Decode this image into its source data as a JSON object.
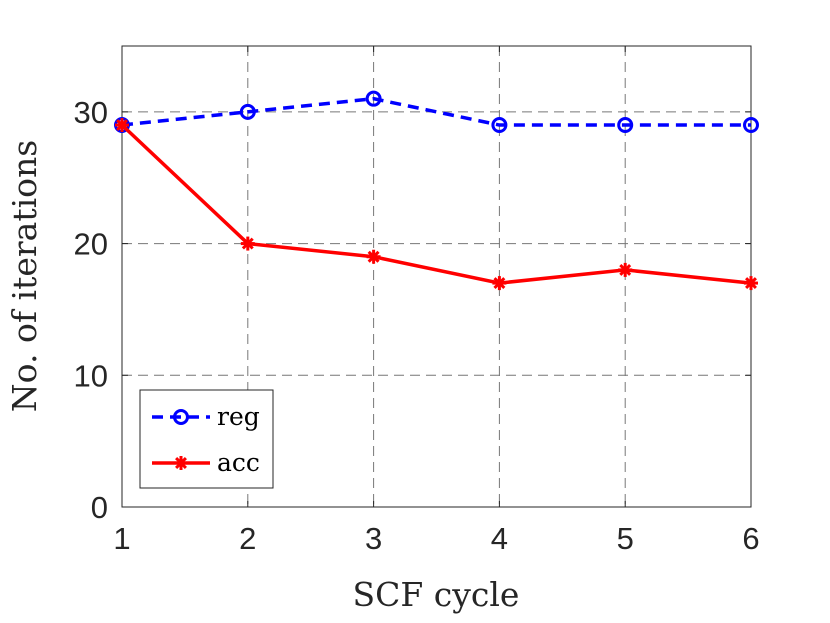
{
  "chart_data": {
    "type": "line",
    "title": "",
    "xlabel": "SCF cycle",
    "ylabel": "No. of iterations",
    "x": [
      1,
      2,
      3,
      4,
      5,
      6
    ],
    "xlim": [
      1,
      6
    ],
    "ylim": [
      0,
      35
    ],
    "xticks": [
      "1",
      "2",
      "3",
      "4",
      "5",
      "6"
    ],
    "yticks": [
      "0",
      "10",
      "20",
      "30"
    ],
    "grid": true,
    "legend_position": "bottom-left",
    "series": [
      {
        "name": "reg",
        "values": [
          29,
          30,
          31,
          29,
          29,
          29
        ],
        "color": "#0000ff",
        "line": "dashed",
        "marker": "circle"
      },
      {
        "name": "acc",
        "values": [
          29,
          20,
          19,
          17,
          18,
          17
        ],
        "color": "#ff0000",
        "line": "solid",
        "marker": "asterisk"
      }
    ]
  }
}
